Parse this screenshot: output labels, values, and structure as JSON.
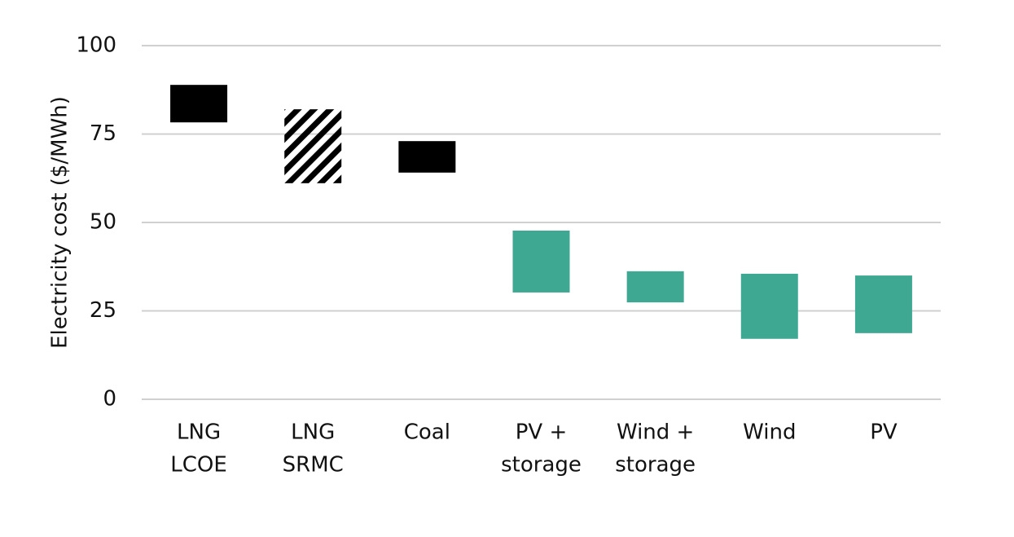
{
  "chart_data": {
    "type": "floating-bar",
    "y_label": "Electricity cost ($/MWh)",
    "categories": [
      [
        "LNG",
        "LCOE"
      ],
      [
        "LNG",
        "SRMC"
      ],
      [
        "Coal"
      ],
      [
        "PV +",
        "storage"
      ],
      [
        "Wind +",
        "storage"
      ],
      [
        "Wind"
      ],
      [
        "PV"
      ]
    ],
    "low": [
      78.3,
      61.1,
      64.1,
      30.2,
      27.4,
      17.1,
      18.7
    ],
    "high": [
      88.9,
      82.0,
      73.0,
      47.7,
      36.2,
      35.5,
      35.0
    ],
    "colors": [
      "#000000",
      "#000000",
      "#000000",
      "#3fa893",
      "#3fa893",
      "#3fa893",
      "#3fa893"
    ],
    "hatched": [
      false,
      true,
      false,
      false,
      false,
      false,
      false
    ],
    "ylim": [
      0,
      100
    ],
    "yticks": [
      0,
      25,
      50,
      75,
      100
    ],
    "grid": true
  }
}
